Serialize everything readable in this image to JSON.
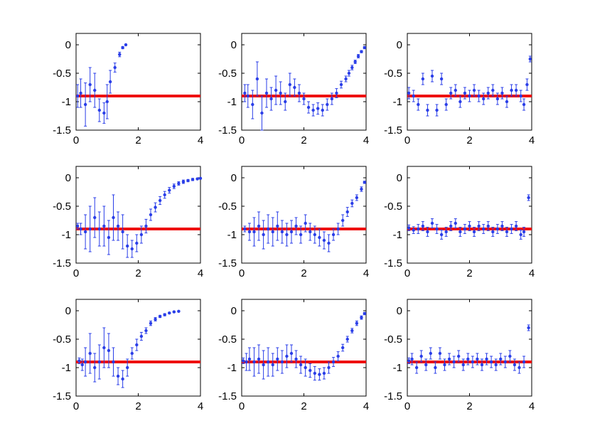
{
  "colors": {
    "data": "#2a3ee8",
    "reference": "#ee1111",
    "axes": "#000000",
    "background": "#ffffff"
  },
  "chart_data": [
    {
      "type": "scatter",
      "xlim": [
        0,
        4
      ],
      "ylim": [
        -1.5,
        0.2
      ],
      "xticks": [
        "0",
        "2",
        "4"
      ],
      "yticks": [
        "0",
        "-0.5",
        "-1",
        "-1.5"
      ],
      "reference_y": -0.9,
      "grid": false,
      "legend": false,
      "x": [
        0.05,
        0.15,
        0.3,
        0.45,
        0.6,
        0.75,
        0.9,
        1.0,
        1.1,
        1.25,
        1.4,
        1.5,
        1.6
      ],
      "y": [
        -0.9,
        -0.85,
        -1.05,
        -0.7,
        -0.8,
        -1.15,
        -1.2,
        -1.0,
        -0.65,
        -0.4,
        -0.17,
        -0.05,
        0.0
      ],
      "err": [
        0.2,
        0.25,
        0.38,
        0.3,
        0.3,
        0.2,
        0.18,
        0.3,
        0.2,
        0.08,
        0.04,
        0.02,
        0.01
      ]
    },
    {
      "type": "scatter",
      "xlim": [
        0,
        4
      ],
      "ylim": [
        -1.5,
        0.2
      ],
      "xticks": [
        "0",
        "2",
        "4"
      ],
      "yticks": [
        "0",
        "-0.5",
        "-1",
        "-1.5"
      ],
      "reference_y": -0.9,
      "grid": false,
      "legend": false,
      "x": [
        0.1,
        0.2,
        0.35,
        0.5,
        0.65,
        0.8,
        0.95,
        1.1,
        1.25,
        1.4,
        1.55,
        1.7,
        1.85,
        2.0,
        2.15,
        2.3,
        2.45,
        2.6,
        2.75,
        2.9,
        3.05,
        3.2,
        3.35,
        3.45,
        3.55,
        3.65,
        3.75,
        3.85,
        3.95
      ],
      "y": [
        -0.85,
        -0.9,
        -1.05,
        -0.6,
        -1.2,
        -0.85,
        -0.95,
        -0.8,
        -0.85,
        -1.0,
        -0.7,
        -0.75,
        -0.85,
        -0.95,
        -1.1,
        -1.15,
        -1.12,
        -1.15,
        -1.05,
        -0.95,
        -0.85,
        -0.7,
        -0.6,
        -0.5,
        -0.4,
        -0.3,
        -0.2,
        -0.12,
        -0.05
      ],
      "err": [
        0.15,
        0.2,
        0.25,
        0.3,
        0.3,
        0.25,
        0.2,
        0.25,
        0.2,
        0.15,
        0.2,
        0.15,
        0.15,
        0.1,
        0.1,
        0.1,
        0.1,
        0.1,
        0.1,
        0.1,
        0.08,
        0.06,
        0.05,
        0.05,
        0.04,
        0.03,
        0.03,
        0.02,
        0.02
      ]
    },
    {
      "type": "scatter",
      "xlim": [
        0,
        4
      ],
      "ylim": [
        -1.5,
        0.2
      ],
      "xticks": [
        "0",
        "2",
        "4"
      ],
      "yticks": [
        "0",
        "-0.5",
        "-1",
        "-1.5"
      ],
      "reference_y": -0.9,
      "grid": false,
      "legend": false,
      "x": [
        0.05,
        0.2,
        0.35,
        0.5,
        0.65,
        0.8,
        0.95,
        1.1,
        1.25,
        1.4,
        1.55,
        1.7,
        1.85,
        2.0,
        2.15,
        2.3,
        2.45,
        2.6,
        2.75,
        2.9,
        3.05,
        3.2,
        3.35,
        3.5,
        3.65,
        3.75,
        3.85,
        3.95
      ],
      "y": [
        -0.85,
        -0.9,
        -1.05,
        -0.6,
        -1.15,
        -0.55,
        -1.15,
        -0.6,
        -1.05,
        -0.85,
        -0.8,
        -1.0,
        -0.85,
        -0.9,
        -0.8,
        -0.9,
        -0.95,
        -0.85,
        -0.8,
        -0.95,
        -0.85,
        -1.0,
        -0.8,
        -0.8,
        -0.9,
        -1.05,
        -0.7,
        -0.25
      ],
      "err": [
        0.1,
        0.1,
        0.1,
        0.1,
        0.1,
        0.1,
        0.1,
        0.1,
        0.1,
        0.1,
        0.1,
        0.1,
        0.1,
        0.1,
        0.1,
        0.1,
        0.1,
        0.1,
        0.1,
        0.1,
        0.1,
        0.1,
        0.1,
        0.1,
        0.1,
        0.1,
        0.1,
        0.05
      ]
    },
    {
      "type": "scatter",
      "xlim": [
        0,
        4
      ],
      "ylim": [
        -1.5,
        0.2
      ],
      "xticks": [
        "0",
        "2",
        "4"
      ],
      "yticks": [
        "0",
        "-0.5",
        "-1",
        "-1.5"
      ],
      "reference_y": -0.9,
      "grid": false,
      "legend": false,
      "x": [
        0.05,
        0.15,
        0.3,
        0.45,
        0.6,
        0.75,
        0.9,
        1.05,
        1.2,
        1.35,
        1.5,
        1.65,
        1.8,
        1.95,
        2.1,
        2.25,
        2.4,
        2.55,
        2.7,
        2.85,
        3.0,
        3.15,
        3.3,
        3.45,
        3.6,
        3.75,
        3.9,
        4.0
      ],
      "y": [
        -0.85,
        -0.9,
        -0.95,
        -0.9,
        -0.7,
        -0.9,
        -0.85,
        -1.05,
        -0.7,
        -0.85,
        -0.95,
        -1.2,
        -1.25,
        -1.15,
        -1.0,
        -0.85,
        -0.65,
        -0.52,
        -0.4,
        -0.3,
        -0.22,
        -0.15,
        -0.1,
        -0.07,
        -0.05,
        -0.03,
        -0.02,
        -0.01
      ],
      "err": [
        0.05,
        0.1,
        0.3,
        0.4,
        0.35,
        0.3,
        0.35,
        0.3,
        0.4,
        0.25,
        0.3,
        0.2,
        0.15,
        0.15,
        0.15,
        0.12,
        0.1,
        0.08,
        0.07,
        0.06,
        0.05,
        0.04,
        0.03,
        0.03,
        0.02,
        0.02,
        0.01,
        0.01
      ]
    },
    {
      "type": "scatter",
      "xlim": [
        0,
        4
      ],
      "ylim": [
        -1.5,
        0.2
      ],
      "xticks": [
        "0",
        "2",
        "4"
      ],
      "yticks": [
        "0",
        "-0.5",
        "-1",
        "-1.5"
      ],
      "reference_y": -0.9,
      "grid": false,
      "legend": false,
      "x": [
        0.1,
        0.25,
        0.4,
        0.55,
        0.7,
        0.85,
        1.0,
        1.15,
        1.3,
        1.45,
        1.6,
        1.75,
        1.9,
        2.05,
        2.2,
        2.35,
        2.5,
        2.65,
        2.8,
        2.95,
        3.1,
        3.25,
        3.4,
        3.55,
        3.7,
        3.85,
        3.95
      ],
      "y": [
        -0.9,
        -0.95,
        -0.95,
        -0.85,
        -1.0,
        -0.9,
        -0.95,
        -0.85,
        -0.95,
        -1.0,
        -0.95,
        -0.85,
        -1.0,
        -0.8,
        -0.95,
        -1.0,
        -1.05,
        -1.1,
        -1.15,
        -1.0,
        -0.9,
        -0.75,
        -0.6,
        -0.45,
        -0.35,
        -0.2,
        -0.08
      ],
      "err": [
        0.05,
        0.15,
        0.25,
        0.25,
        0.25,
        0.25,
        0.25,
        0.25,
        0.2,
        0.2,
        0.2,
        0.15,
        0.15,
        0.15,
        0.15,
        0.15,
        0.15,
        0.15,
        0.15,
        0.1,
        0.1,
        0.1,
        0.08,
        0.06,
        0.05,
        0.04,
        0.02
      ]
    },
    {
      "type": "scatter",
      "xlim": [
        0,
        4
      ],
      "ylim": [
        -1.5,
        0.2
      ],
      "xticks": [
        "0",
        "2",
        "4"
      ],
      "yticks": [
        "0",
        "-0.5",
        "-1",
        "-1.5"
      ],
      "reference_y": -0.9,
      "grid": false,
      "legend": false,
      "x": [
        0.05,
        0.2,
        0.35,
        0.5,
        0.65,
        0.8,
        0.95,
        1.1,
        1.25,
        1.4,
        1.55,
        1.7,
        1.85,
        2.0,
        2.15,
        2.3,
        2.45,
        2.6,
        2.75,
        2.9,
        3.05,
        3.2,
        3.35,
        3.5,
        3.65,
        3.75,
        3.9
      ],
      "y": [
        -0.88,
        -0.92,
        -0.9,
        -0.85,
        -0.95,
        -0.8,
        -0.9,
        -1.0,
        -0.95,
        -0.85,
        -0.8,
        -0.95,
        -0.9,
        -0.85,
        -0.95,
        -0.85,
        -0.9,
        -0.85,
        -0.95,
        -0.9,
        -0.85,
        -0.95,
        -0.9,
        -0.85,
        -1.0,
        -0.95,
        -0.35
      ],
      "err": [
        0.05,
        0.06,
        0.08,
        0.08,
        0.08,
        0.08,
        0.08,
        0.08,
        0.08,
        0.08,
        0.08,
        0.08,
        0.08,
        0.08,
        0.08,
        0.08,
        0.08,
        0.08,
        0.08,
        0.08,
        0.08,
        0.08,
        0.08,
        0.08,
        0.08,
        0.08,
        0.05
      ]
    },
    {
      "type": "scatter",
      "xlim": [
        0,
        4
      ],
      "ylim": [
        -1.5,
        0.2
      ],
      "xticks": [
        "0",
        "2",
        "4"
      ],
      "yticks": [
        "0",
        "-0.5",
        "-1",
        "-1.5"
      ],
      "reference_y": -0.9,
      "grid": false,
      "legend": false,
      "x": [
        0.1,
        0.2,
        0.3,
        0.45,
        0.6,
        0.75,
        0.9,
        1.05,
        1.2,
        1.35,
        1.5,
        1.65,
        1.8,
        1.95,
        2.1,
        2.25,
        2.4,
        2.55,
        2.7,
        2.85,
        3.0,
        3.15,
        3.3
      ],
      "y": [
        -0.88,
        -0.95,
        -0.9,
        -0.75,
        -1.0,
        -0.9,
        -0.65,
        -0.7,
        -0.9,
        -1.15,
        -1.2,
        -1.0,
        -0.75,
        -0.6,
        -0.45,
        -0.35,
        -0.22,
        -0.15,
        -0.1,
        -0.07,
        -0.04,
        -0.02,
        -0.01
      ],
      "err": [
        0.05,
        0.1,
        0.25,
        0.35,
        0.25,
        0.3,
        0.35,
        0.3,
        0.25,
        0.15,
        0.15,
        0.15,
        0.1,
        0.1,
        0.07,
        0.05,
        0.04,
        0.03,
        0.02,
        0.02,
        0.01,
        0.01,
        0.01
      ]
    },
    {
      "type": "scatter",
      "xlim": [
        0,
        4
      ],
      "ylim": [
        -1.5,
        0.2
      ],
      "xticks": [
        "0",
        "2",
        "4"
      ],
      "yticks": [
        "0",
        "-0.5",
        "-1",
        "-1.5"
      ],
      "reference_y": -0.9,
      "grid": false,
      "legend": false,
      "x": [
        0.05,
        0.15,
        0.25,
        0.4,
        0.55,
        0.7,
        0.85,
        1.0,
        1.15,
        1.3,
        1.45,
        1.6,
        1.75,
        1.9,
        2.05,
        2.2,
        2.35,
        2.5,
        2.65,
        2.8,
        2.95,
        3.1,
        3.25,
        3.4,
        3.55,
        3.7,
        3.85,
        3.95
      ],
      "y": [
        -0.88,
        -0.9,
        -0.85,
        -0.9,
        -0.85,
        -0.95,
        -0.9,
        -0.95,
        -0.85,
        -0.9,
        -0.8,
        -0.75,
        -0.85,
        -0.95,
        -1.0,
        -1.05,
        -1.1,
        -1.12,
        -1.1,
        -1.0,
        -0.9,
        -0.8,
        -0.65,
        -0.5,
        -0.35,
        -0.22,
        -0.12,
        -0.05
      ],
      "err": [
        0.05,
        0.15,
        0.2,
        0.25,
        0.25,
        0.25,
        0.25,
        0.2,
        0.2,
        0.2,
        0.2,
        0.15,
        0.15,
        0.15,
        0.15,
        0.12,
        0.12,
        0.1,
        0.1,
        0.1,
        0.08,
        0.08,
        0.06,
        0.05,
        0.04,
        0.04,
        0.03,
        0.02
      ]
    },
    {
      "type": "scatter",
      "xlim": [
        0,
        4
      ],
      "ylim": [
        -1.5,
        0.2
      ],
      "xticks": [
        "0",
        "2",
        "4"
      ],
      "yticks": [
        "0",
        "-0.5",
        "-1",
        "-1.5"
      ],
      "reference_y": -0.9,
      "grid": false,
      "legend": false,
      "x": [
        0.05,
        0.15,
        0.3,
        0.45,
        0.6,
        0.75,
        0.9,
        1.05,
        1.2,
        1.35,
        1.5,
        1.65,
        1.8,
        1.95,
        2.1,
        2.25,
        2.4,
        2.55,
        2.7,
        2.85,
        3.0,
        3.15,
        3.3,
        3.45,
        3.6,
        3.75,
        3.9
      ],
      "y": [
        -0.88,
        -0.85,
        -1.0,
        -0.8,
        -0.95,
        -0.75,
        -1.0,
        -0.75,
        -0.95,
        -0.85,
        -0.9,
        -0.8,
        -0.95,
        -0.85,
        -0.9,
        -0.85,
        -0.95,
        -0.85,
        -0.9,
        -0.95,
        -0.85,
        -0.9,
        -0.8,
        -0.95,
        -1.0,
        -0.9,
        -0.3
      ],
      "err": [
        0.05,
        0.1,
        0.1,
        0.1,
        0.1,
        0.1,
        0.1,
        0.1,
        0.1,
        0.1,
        0.1,
        0.1,
        0.1,
        0.1,
        0.1,
        0.1,
        0.1,
        0.1,
        0.1,
        0.1,
        0.1,
        0.1,
        0.1,
        0.1,
        0.1,
        0.1,
        0.05
      ]
    }
  ]
}
